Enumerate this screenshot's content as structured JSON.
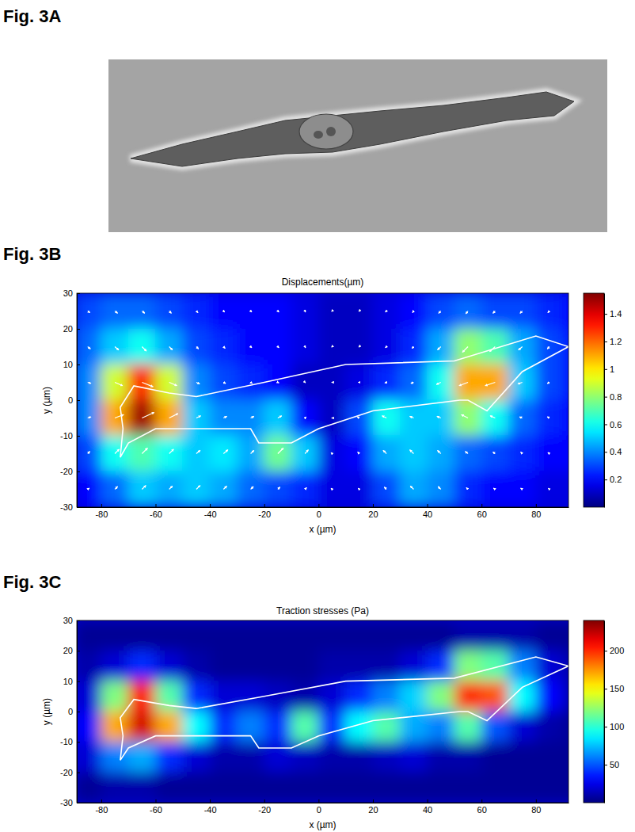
{
  "figure_labels": [
    "Fig. 3A",
    "Fig. 3B",
    "Fig. 3C"
  ],
  "chart_data": [
    {
      "type": "heatmap",
      "title": "Displacements(µm)",
      "x_label": "x (µm)",
      "y_label": "y (µm)",
      "xlim": [
        -89,
        92
      ],
      "ylim": [
        -30,
        30
      ],
      "xticks": [
        -80,
        -60,
        -40,
        -20,
        0,
        20,
        40,
        60,
        80
      ],
      "yticks": [
        -30,
        -20,
        -10,
        0,
        10,
        20,
        30
      ],
      "x": [
        -85,
        -75,
        -65,
        -55,
        -45,
        -35,
        -25,
        -15,
        -5,
        5,
        15,
        25,
        35,
        45,
        55,
        65,
        75,
        85,
        95
      ],
      "y": [
        25,
        15,
        5,
        -5,
        -15,
        -25
      ],
      "cells": [
        [
          0.3,
          0.35,
          0.35,
          0.3,
          0.25,
          0.2,
          0.2,
          0.2,
          0.15,
          0.1,
          0.1,
          0.15,
          0.2,
          0.3,
          0.35,
          0.3,
          0.3,
          0.25,
          0.2
        ],
        [
          0.35,
          0.5,
          0.6,
          0.45,
          0.3,
          0.25,
          0.2,
          0.2,
          0.15,
          0.1,
          0.1,
          0.15,
          0.25,
          0.45,
          0.8,
          0.7,
          0.45,
          0.3,
          0.2
        ],
        [
          0.4,
          0.9,
          1.3,
          0.9,
          0.4,
          0.3,
          0.25,
          0.2,
          0.1,
          0.1,
          0.15,
          0.25,
          0.35,
          0.6,
          1.1,
          1.1,
          0.5,
          0.3,
          0.2
        ],
        [
          0.4,
          1.1,
          1.5,
          1.1,
          0.5,
          0.4,
          0.4,
          0.5,
          0.2,
          0.1,
          0.3,
          0.6,
          0.5,
          0.5,
          0.8,
          0.6,
          0.35,
          0.25,
          0.2
        ],
        [
          0.3,
          0.6,
          0.7,
          0.6,
          0.5,
          0.55,
          0.45,
          0.75,
          0.5,
          0.15,
          0.2,
          0.45,
          0.5,
          0.45,
          0.35,
          0.3,
          0.25,
          0.2,
          0.2
        ],
        [
          0.2,
          0.35,
          0.5,
          0.45,
          0.5,
          0.45,
          0.35,
          0.3,
          0.25,
          0.15,
          0.15,
          0.3,
          0.45,
          0.4,
          0.25,
          0.2,
          0.2,
          0.15,
          0.15
        ]
      ],
      "colorbar_range": [
        0,
        1.55
      ],
      "colorbar_ticks": [
        0.2,
        0.4,
        0.6,
        0.8,
        1,
        1.2,
        1.4
      ],
      "outline": {
        "x": [
          -73,
          -68,
          -55,
          -45,
          -20,
          10,
          50,
          80,
          92,
          75,
          62,
          55,
          52,
          20,
          0,
          -10,
          -22,
          -25,
          -50,
          -60,
          -70,
          -73,
          -72
        ],
        "y": [
          -2,
          4,
          2,
          1,
          5,
          10,
          11,
          18,
          15,
          8,
          -3,
          0,
          0,
          -3,
          -8,
          -12,
          -12,
          -8,
          -8,
          -8,
          -12,
          -16,
          -8
        ]
      },
      "arrows": {
        "x": [
          -85,
          -75,
          -65,
          -55,
          -45,
          -35,
          -25,
          -15,
          -5,
          5,
          15,
          25,
          35,
          45,
          55,
          65,
          75,
          85
        ],
        "y": [
          25,
          15,
          5,
          -5,
          -15,
          -25
        ],
        "u": [
          [
            0.2,
            0.25,
            0.25,
            0.2,
            0.15,
            0.1,
            0.1,
            0.1,
            0.05,
            -0.05,
            -0.05,
            -0.1,
            -0.1,
            -0.2,
            -0.2,
            -0.2,
            -0.2,
            -0.15
          ],
          [
            0.25,
            0.35,
            0.4,
            0.3,
            0.2,
            0.15,
            0.1,
            0.1,
            0.05,
            -0.05,
            -0.05,
            -0.1,
            -0.15,
            -0.3,
            -0.5,
            -0.5,
            -0.35,
            -0.2
          ],
          [
            0.3,
            0.7,
            1.0,
            0.7,
            0.3,
            0.2,
            0.15,
            0.1,
            0.05,
            -0.05,
            -0.1,
            -0.15,
            -0.25,
            -0.4,
            -0.8,
            -0.9,
            -0.4,
            -0.2
          ],
          [
            0.3,
            0.8,
            1.1,
            0.8,
            0.4,
            0.3,
            0.3,
            0.35,
            0.1,
            -0.05,
            -0.2,
            -0.4,
            -0.35,
            -0.35,
            -0.6,
            -0.45,
            -0.25,
            -0.2
          ],
          [
            0.2,
            0.4,
            0.5,
            0.4,
            0.35,
            0.4,
            0.3,
            0.5,
            0.3,
            -0.1,
            -0.15,
            -0.3,
            -0.35,
            -0.3,
            -0.25,
            -0.2,
            -0.15,
            -0.15
          ],
          [
            0.15,
            0.25,
            0.35,
            0.3,
            0.35,
            0.3,
            0.25,
            0.2,
            0.15,
            -0.1,
            -0.1,
            -0.2,
            -0.3,
            -0.25,
            -0.15,
            -0.15,
            -0.15,
            -0.1
          ]
        ],
        "v": [
          [
            -0.15,
            -0.2,
            -0.2,
            -0.2,
            -0.15,
            -0.1,
            -0.1,
            -0.1,
            -0.1,
            -0.05,
            -0.05,
            -0.1,
            -0.15,
            -0.2,
            -0.25,
            -0.2,
            -0.2,
            -0.15
          ],
          [
            -0.2,
            -0.3,
            -0.4,
            -0.3,
            -0.2,
            -0.15,
            -0.1,
            -0.1,
            -0.1,
            -0.05,
            -0.05,
            -0.1,
            -0.15,
            -0.3,
            -0.5,
            -0.45,
            -0.3,
            -0.2
          ],
          [
            -0.1,
            -0.3,
            -0.4,
            -0.3,
            -0.15,
            -0.1,
            -0.1,
            -0.05,
            -0.05,
            0,
            0,
            -0.05,
            -0.1,
            -0.2,
            -0.3,
            -0.3,
            -0.15,
            -0.1
          ],
          [
            0.1,
            0.3,
            0.5,
            0.4,
            0.2,
            0.15,
            0.15,
            0.2,
            0.1,
            0,
            0.1,
            0.2,
            0.15,
            0.15,
            0.3,
            0.2,
            0.1,
            0.1
          ],
          [
            0.2,
            0.4,
            0.5,
            0.4,
            0.3,
            0.35,
            0.3,
            0.5,
            0.35,
            0.1,
            0.15,
            0.3,
            0.35,
            0.3,
            0.2,
            0.15,
            0.15,
            0.1
          ],
          [
            0.1,
            0.25,
            0.35,
            0.3,
            0.35,
            0.3,
            0.25,
            0.2,
            0.15,
            0.1,
            0.1,
            0.2,
            0.3,
            0.25,
            0.15,
            0.1,
            0.1,
            0.1
          ]
        ]
      }
    },
    {
      "type": "heatmap",
      "title": "Traction stresses (Pa)",
      "x_label": "x (µm)",
      "y_label": "y (µm)",
      "xlim": [
        -89,
        92
      ],
      "ylim": [
        -30,
        30
      ],
      "xticks": [
        -80,
        -60,
        -40,
        -20,
        0,
        20,
        40,
        60,
        80
      ],
      "yticks": [
        -30,
        -20,
        -10,
        0,
        10,
        20,
        30
      ],
      "x": [
        -85,
        -75,
        -65,
        -55,
        -45,
        -35,
        -25,
        -15,
        -5,
        5,
        15,
        25,
        35,
        45,
        55,
        65,
        75,
        85,
        95
      ],
      "y": [
        25,
        15,
        5,
        -5,
        -15,
        -25
      ],
      "cells": [
        [
          5,
          5,
          5,
          5,
          5,
          5,
          5,
          5,
          5,
          5,
          5,
          5,
          5,
          5,
          10,
          10,
          10,
          5,
          5
        ],
        [
          10,
          20,
          40,
          20,
          10,
          5,
          5,
          5,
          5,
          10,
          10,
          10,
          20,
          40,
          120,
          110,
          60,
          20,
          10
        ],
        [
          20,
          120,
          210,
          110,
          40,
          20,
          20,
          15,
          10,
          20,
          40,
          60,
          80,
          120,
          200,
          190,
          90,
          30,
          10
        ],
        [
          30,
          170,
          220,
          170,
          90,
          40,
          60,
          40,
          110,
          40,
          90,
          110,
          70,
          60,
          110,
          50,
          20,
          10,
          5
        ],
        [
          20,
          60,
          70,
          40,
          20,
          10,
          10,
          20,
          15,
          10,
          10,
          15,
          20,
          10,
          10,
          5,
          5,
          5,
          5
        ],
        [
          5,
          10,
          10,
          5,
          5,
          5,
          5,
          5,
          5,
          5,
          5,
          5,
          5,
          5,
          5,
          5,
          5,
          5,
          5
        ]
      ],
      "colorbar_range": [
        0,
        240
      ],
      "colorbar_ticks": [
        50,
        100,
        150,
        200
      ],
      "outline": {
        "x": [
          -73,
          -68,
          -55,
          -45,
          -20,
          10,
          50,
          80,
          92,
          75,
          62,
          55,
          52,
          20,
          0,
          -10,
          -22,
          -25,
          -50,
          -60,
          -70,
          -73,
          -72
        ],
        "y": [
          -2,
          4,
          2,
          1,
          5,
          10,
          11,
          18,
          15,
          8,
          -3,
          0,
          0,
          -3,
          -8,
          -12,
          -12,
          -8,
          -8,
          -8,
          -12,
          -16,
          -8
        ]
      }
    }
  ]
}
